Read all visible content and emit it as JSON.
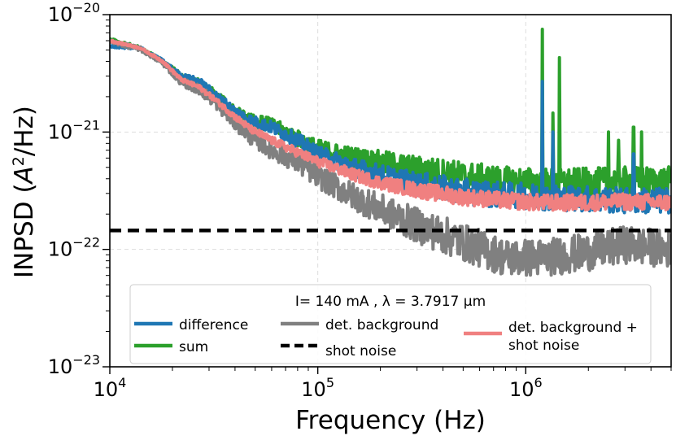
{
  "chart_data": {
    "type": "line",
    "title": "",
    "xlabel": "Frequency (Hz)",
    "ylabel": "INPSD (A²/Hz)",
    "ylabel_parts": {
      "main": "INPSD (",
      "italic": "A",
      "sup": "2",
      "tail": "/Hz)"
    },
    "xscale": "log",
    "yscale": "log",
    "xlim": [
      10000,
      5000000
    ],
    "ylim": [
      1e-23,
      1e-20
    ],
    "x_ticks": [
      {
        "value": 10000,
        "base": "10",
        "exp": "4"
      },
      {
        "value": 100000,
        "base": "10",
        "exp": "5"
      },
      {
        "value": 1000000,
        "base": "10",
        "exp": "6"
      }
    ],
    "y_ticks": [
      {
        "value": 1e-23,
        "base": "10",
        "exp": "−23"
      },
      {
        "value": 1e-22,
        "base": "10",
        "exp": "−22"
      },
      {
        "value": 1e-21,
        "base": "10",
        "exp": "−21"
      },
      {
        "value": 1e-20,
        "base": "10",
        "exp": "−20"
      }
    ],
    "grid": true,
    "legend": {
      "placement": "lower-center",
      "title": "I= 140 mA , λ = 3.7917 µm",
      "entries": [
        {
          "label": "difference",
          "color": "#1f77b4",
          "style": "solid"
        },
        {
          "label": "sum",
          "color": "#2ca02c",
          "style": "solid"
        },
        {
          "label": "det. background",
          "color": "#808080",
          "style": "solid"
        },
        {
          "label": "shot noise",
          "color": "#000000",
          "style": "dashed"
        },
        {
          "label": "det. background +",
          "label2": "shot noise",
          "color": "#f08080",
          "style": "solid"
        }
      ]
    },
    "series": [
      {
        "name": "sum",
        "color": "#2ca02c",
        "baseline": [
          [
            10000,
            6.1e-21
          ],
          [
            14000,
            5.2e-21
          ],
          [
            18000,
            4e-21
          ],
          [
            22000,
            3e-21
          ],
          [
            27000,
            2.6e-21
          ],
          [
            32000,
            2.1e-21
          ],
          [
            40000,
            1.5e-21
          ],
          [
            48000,
            1.25e-21
          ],
          [
            60000,
            1.15e-21
          ],
          [
            80000,
            8.8e-22
          ],
          [
            100000,
            7.2e-22
          ],
          [
            150000,
            6e-22
          ],
          [
            200000,
            5.5e-22
          ],
          [
            300000,
            4.8e-22
          ],
          [
            500000,
            4.2e-22
          ],
          [
            800000,
            3.8e-22
          ],
          [
            1200000,
            3.7e-22
          ],
          [
            2000000,
            3.7e-22
          ],
          [
            3000000,
            3.8e-22
          ],
          [
            5000000,
            3.8e-22
          ]
        ],
        "noise": 0.25,
        "spikes": [
          [
            1200000,
            7.5e-21
          ],
          [
            1350000,
            1.45e-21
          ],
          [
            1450000,
            4.3e-21
          ],
          [
            2500000,
            1e-21
          ],
          [
            2800000,
            8.5e-22
          ],
          [
            3300000,
            1.1e-21
          ],
          [
            3600000,
            1e-21
          ]
        ]
      },
      {
        "name": "difference",
        "color": "#1f77b4",
        "baseline": [
          [
            10000,
            5.4e-21
          ],
          [
            14000,
            5.2e-21
          ],
          [
            18000,
            4e-21
          ],
          [
            22000,
            3e-21
          ],
          [
            27000,
            2.7e-21
          ],
          [
            32000,
            2.1e-21
          ],
          [
            40000,
            1.5e-21
          ],
          [
            48000,
            1.25e-21
          ],
          [
            60000,
            1.1e-21
          ],
          [
            80000,
            8.5e-22
          ],
          [
            100000,
            6.5e-22
          ],
          [
            150000,
            5e-22
          ],
          [
            200000,
            4.3e-22
          ],
          [
            300000,
            3.6e-22
          ],
          [
            500000,
            3.1e-22
          ],
          [
            800000,
            2.9e-22
          ],
          [
            1200000,
            2.8e-22
          ],
          [
            2000000,
            2.7e-22
          ],
          [
            3000000,
            2.6e-22
          ],
          [
            5000000,
            2.6e-22
          ]
        ],
        "noise": 0.22,
        "spikes": [
          [
            1200000,
            2.7e-21
          ],
          [
            1350000,
            1e-21
          ],
          [
            3300000,
            6.5e-22
          ]
        ]
      },
      {
        "name": "det. background",
        "color": "#808080",
        "baseline": [
          [
            10000,
            5.9e-21
          ],
          [
            14000,
            5.1e-21
          ],
          [
            18000,
            3.9e-21
          ],
          [
            22000,
            2.7e-21
          ],
          [
            27000,
            2.3e-21
          ],
          [
            32000,
            1.8e-21
          ],
          [
            40000,
            1.2e-21
          ],
          [
            48000,
            9e-22
          ],
          [
            60000,
            7e-22
          ],
          [
            80000,
            5.5e-22
          ],
          [
            100000,
            4.2e-22
          ],
          [
            150000,
            2.8e-22
          ],
          [
            200000,
            2.2e-22
          ],
          [
            300000,
            1.6e-22
          ],
          [
            500000,
            1.15e-22
          ],
          [
            800000,
            8.5e-23
          ],
          [
            1200000,
            8.5e-23
          ],
          [
            2000000,
            9.5e-23
          ],
          [
            3000000,
            1.1e-22
          ],
          [
            5000000,
            1e-22
          ]
        ],
        "noise": 0.32,
        "spikes": []
      },
      {
        "name": "det. background + shot noise",
        "color": "#f08080",
        "baseline": [
          [
            10000,
            6e-21
          ],
          [
            14000,
            5.2e-21
          ],
          [
            18000,
            4e-21
          ],
          [
            22000,
            2.8e-21
          ],
          [
            27000,
            2.4e-21
          ],
          [
            32000,
            1.9e-21
          ],
          [
            40000,
            1.35e-21
          ],
          [
            48000,
            1.05e-21
          ],
          [
            60000,
            8.5e-22
          ],
          [
            80000,
            6.7e-22
          ],
          [
            100000,
            5.6e-22
          ],
          [
            150000,
            4.3e-22
          ],
          [
            200000,
            3.7e-22
          ],
          [
            300000,
            3.2e-22
          ],
          [
            500000,
            2.8e-22
          ],
          [
            800000,
            2.6e-22
          ],
          [
            1200000,
            2.5e-22
          ],
          [
            2000000,
            2.5e-22
          ],
          [
            3000000,
            2.55e-22
          ],
          [
            5000000,
            2.5e-22
          ]
        ],
        "noise": 0.14,
        "spikes": []
      }
    ],
    "shot_noise": {
      "name": "shot noise",
      "color": "#000000",
      "value": 1.45e-22
    }
  }
}
